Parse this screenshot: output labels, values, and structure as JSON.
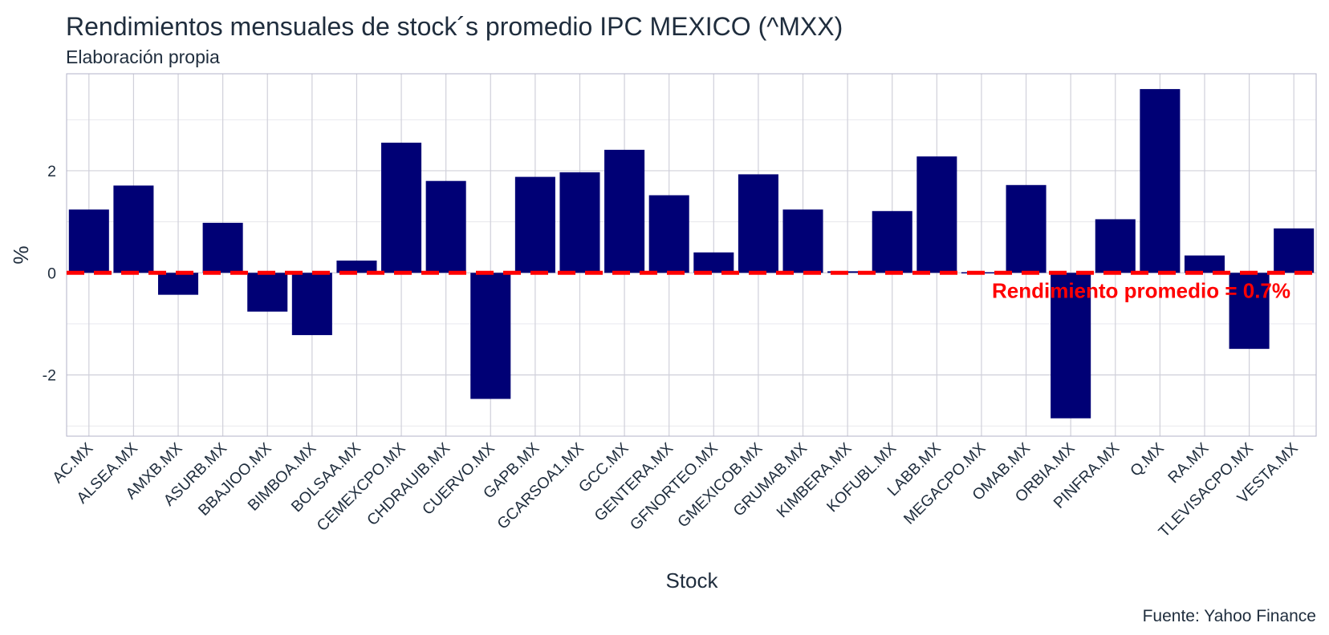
{
  "chart_data": {
    "type": "bar",
    "title": "Rendimientos mensuales de stock´s promedio IPC MEXICO (^MXX)",
    "subtitle": "Elaboración propia",
    "caption": "Fuente: Yahoo Finance",
    "xlabel": "Stock",
    "ylabel": "%",
    "categories": [
      "AC.MX",
      "ALSEA.MX",
      "AMXB.MX",
      "ASURB.MX",
      "BBAJIOO.MX",
      "BIMBOA.MX",
      "BOLSAA.MX",
      "CEMEXCPO.MX",
      "CHDRAUIB.MX",
      "CUERVO.MX",
      "GAPB.MX",
      "GCARSOA1.MX",
      "GCC.MX",
      "GENTERA.MX",
      "GFNORTEO.MX",
      "GMEXICOB.MX",
      "GRUMAB.MX",
      "KIMBERA.MX",
      "KOFUBL.MX",
      "LABB.MX",
      "MEGACPO.MX",
      "OMAB.MX",
      "ORBIA.MX",
      "PINFRA.MX",
      "Q.MX",
      "RA.MX",
      "TLEVISACPO.MX",
      "VESTA.MX"
    ],
    "values": [
      1.24,
      1.71,
      -0.43,
      0.98,
      -0.76,
      -1.22,
      0.24,
      2.55,
      1.8,
      -2.47,
      1.88,
      1.97,
      2.41,
      1.52,
      0.4,
      1.93,
      1.24,
      0.03,
      1.21,
      2.28,
      -0.02,
      1.72,
      -2.85,
      1.05,
      3.6,
      0.34,
      -1.49,
      0.87
    ],
    "yticks": [
      -2,
      0,
      2
    ],
    "ylim": [
      -3.2,
      3.9
    ],
    "grid": true,
    "bar_color": "#000075",
    "reference_line": {
      "value": 0,
      "style": "dashed",
      "color": "#ff0000"
    },
    "annotation": {
      "text": "Rendimiento promedio = 0.7%",
      "color": "#ff0000"
    }
  }
}
